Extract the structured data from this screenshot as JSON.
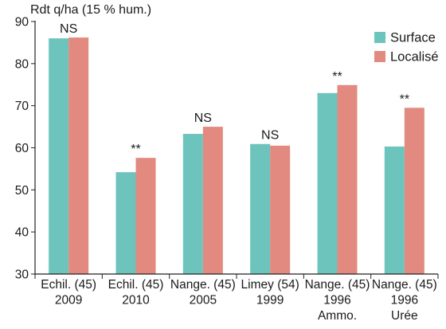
{
  "chart_data": {
    "type": "bar",
    "ylabel": "Rdt q/ha (15 % hum.)",
    "ylim": [
      30,
      90
    ],
    "yticks": [
      30,
      40,
      50,
      60,
      70,
      80,
      90
    ],
    "categories": [
      [
        "Echil. (45)",
        "2009"
      ],
      [
        "Echil. (45)",
        "2010"
      ],
      [
        "Nange. (45)",
        "2005"
      ],
      [
        "Limey (54)",
        "1999"
      ],
      [
        "Nange. (45)",
        "1996",
        "Ammo."
      ],
      [
        "Nange. (45)",
        "1996",
        "Urée"
      ]
    ],
    "series": [
      {
        "name": "Surface",
        "color": "#6cc4bd",
        "values": [
          86,
          54.2,
          63.3,
          60.9,
          73,
          60.3
        ]
      },
      {
        "name": "Localisé",
        "color": "#e28a7f",
        "values": [
          86.2,
          57.6,
          65,
          60.5,
          74.9,
          69.5
        ]
      }
    ],
    "annotations": [
      "NS",
      "**",
      "NS",
      "NS",
      "**",
      "**"
    ],
    "legend_position": "top-right",
    "grid": false
  }
}
